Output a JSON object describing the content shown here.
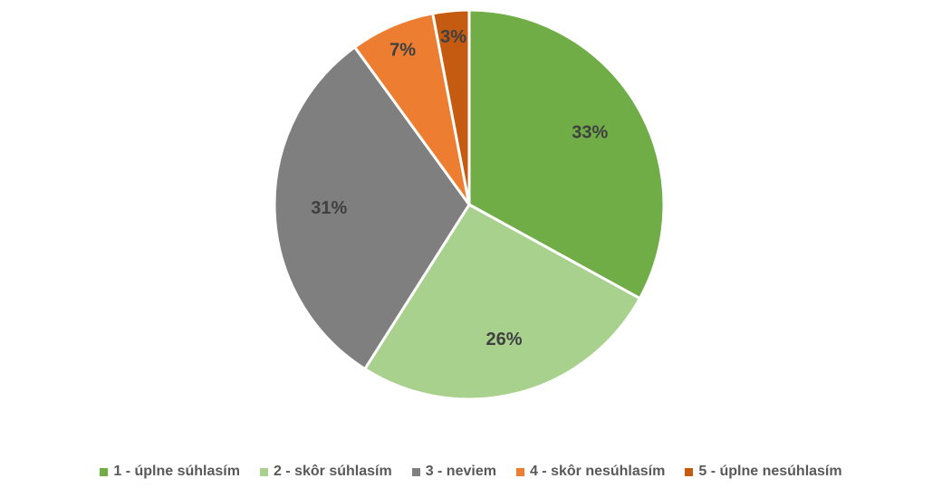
{
  "chart_data": {
    "type": "pie",
    "categories": [
      "1 - úplne súhlasím",
      "2 - skôr súhlasím",
      "3 - neviem",
      "4 - skôr nesúhlasím",
      "5 - úplne nesúhlasím"
    ],
    "values": [
      33,
      26,
      31,
      7,
      3
    ],
    "value_labels": [
      "33%",
      "26%",
      "31%",
      "7%",
      "3%"
    ],
    "colors": [
      "#70ad47",
      "#a9d18e",
      "#7f7f7f",
      "#ed7d31",
      "#c55a11"
    ],
    "legend": "bottom"
  }
}
